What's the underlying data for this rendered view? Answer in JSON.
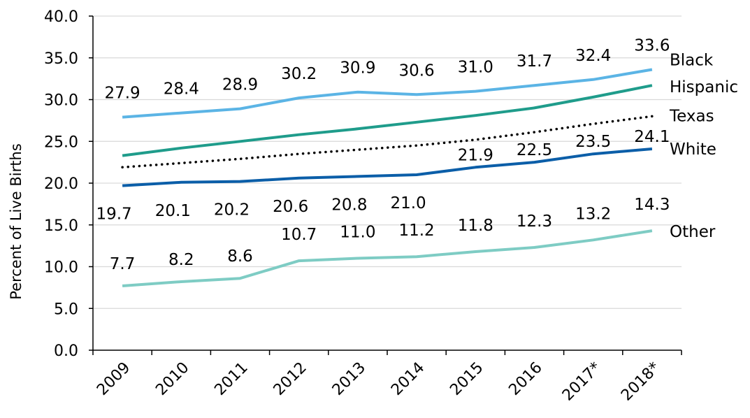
{
  "chart_data": {
    "type": "line",
    "categories": [
      "2009",
      "2010",
      "2011",
      "2012",
      "2013",
      "2014",
      "2015",
      "2016",
      "2017*",
      "2018*"
    ],
    "ylabel": "Percent of Live Births",
    "xlabel": "",
    "ylim": [
      0,
      40
    ],
    "yticks": [
      "0.0",
      "5.0",
      "10.0",
      "15.0",
      "20.0",
      "25.0",
      "30.0",
      "35.0",
      "40.0"
    ],
    "grid": "horizontal",
    "series": [
      {
        "name": "Black",
        "color": "#5BB4E5",
        "style": "solid",
        "values": [
          27.9,
          28.4,
          28.9,
          30.2,
          30.9,
          30.6,
          31.0,
          31.7,
          32.4,
          33.6
        ],
        "labels": [
          "27.9",
          "28.4",
          "28.9",
          "30.2",
          "30.9",
          "30.6",
          "31.0",
          "31.7",
          "32.4",
          "33.6"
        ]
      },
      {
        "name": "Hispanic",
        "color": "#1F9C8B",
        "style": "solid",
        "values": [
          23.3,
          24.2,
          25.0,
          25.8,
          26.5,
          27.3,
          28.1,
          29.0,
          30.3,
          31.7
        ],
        "labels": []
      },
      {
        "name": "Texas",
        "color": "#000000",
        "style": "dotted",
        "values": [
          21.9,
          22.4,
          22.9,
          23.5,
          24.0,
          24.5,
          25.2,
          26.1,
          27.1,
          28.0
        ],
        "labels": []
      },
      {
        "name": "White",
        "color": "#0B5EA8",
        "style": "solid",
        "values": [
          19.7,
          20.1,
          20.2,
          20.6,
          20.8,
          21.0,
          21.9,
          22.5,
          23.5,
          24.1
        ],
        "labels": [
          "19.7",
          "20.1",
          "20.2",
          "20.6",
          "20.8",
          "21.0",
          "21.9",
          "22.5",
          "23.5",
          "24.1"
        ]
      },
      {
        "name": "Other",
        "color": "#7ECCC4",
        "style": "solid",
        "values": [
          7.7,
          8.2,
          8.6,
          10.7,
          11.0,
          11.2,
          11.8,
          12.3,
          13.2,
          14.3
        ],
        "labels": [
          "7.7",
          "8.2",
          "8.6",
          "10.7",
          "11.0",
          "11.2",
          "11.8",
          "12.3",
          "13.2",
          "14.3"
        ]
      }
    ]
  }
}
